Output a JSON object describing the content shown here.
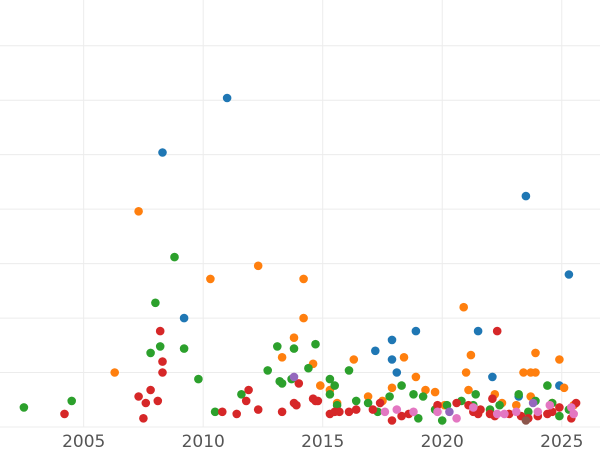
{
  "chart_data": {
    "type": "scatter",
    "title": "",
    "xlabel": "",
    "ylabel": "",
    "xlim": [
      2001.5,
      2026.6
    ],
    "ylim": [
      0,
      9.8
    ],
    "grid": true,
    "x_ticks": [
      2005,
      2010,
      2015,
      2020,
      2025
    ],
    "x_tick_labels": [
      "2005",
      "2010",
      "2015",
      "2020",
      "2025"
    ],
    "y_gridlines": [
      0,
      1.25,
      2.5,
      3.75,
      5.0,
      6.25,
      7.5,
      8.75
    ],
    "series": [
      {
        "color": "#1f77b4",
        "points": [
          [
            2008.3,
            6.3
          ],
          [
            2011.0,
            7.55
          ],
          [
            2009.2,
            2.5
          ],
          [
            2017.9,
            2.0
          ],
          [
            2018.9,
            2.2
          ],
          [
            2017.2,
            1.75
          ],
          [
            2017.9,
            1.55
          ],
          [
            2018.1,
            1.25
          ],
          [
            2021.5,
            2.2
          ],
          [
            2022.1,
            1.15
          ],
          [
            2023.5,
            5.3
          ],
          [
            2025.3,
            3.5
          ],
          [
            2024.9,
            0.95
          ],
          [
            2023.2,
            0.7
          ]
        ]
      },
      {
        "color": "#ff7f0e",
        "points": [
          [
            2007.3,
            4.95
          ],
          [
            2006.3,
            1.25
          ],
          [
            2010.3,
            3.4
          ],
          [
            2012.3,
            3.7
          ],
          [
            2014.2,
            3.4
          ],
          [
            2014.2,
            2.5
          ],
          [
            2013.8,
            2.05
          ],
          [
            2013.3,
            1.6
          ],
          [
            2014.6,
            1.45
          ],
          [
            2014.9,
            0.95
          ],
          [
            2015.3,
            0.85
          ],
          [
            2016.3,
            1.55
          ],
          [
            2016.9,
            0.7
          ],
          [
            2017.9,
            0.9
          ],
          [
            2018.4,
            1.6
          ],
          [
            2018.9,
            1.15
          ],
          [
            2019.3,
            0.85
          ],
          [
            2020.1,
            0.5
          ],
          [
            2020.9,
            2.75
          ],
          [
            2021.2,
            1.65
          ],
          [
            2021.0,
            1.25
          ],
          [
            2021.1,
            0.85
          ],
          [
            2022.2,
            0.75
          ],
          [
            2022.5,
            0.55
          ],
          [
            2023.4,
            1.25
          ],
          [
            2023.7,
            1.25
          ],
          [
            2023.9,
            1.25
          ],
          [
            2023.9,
            1.7
          ],
          [
            2023.7,
            0.7
          ],
          [
            2024.9,
            1.55
          ],
          [
            2025.1,
            0.9
          ],
          [
            2025.5,
            0.5
          ],
          [
            2015.6,
            0.55
          ],
          [
            2017.5,
            0.6
          ],
          [
            2019.7,
            0.8
          ],
          [
            2023.1,
            0.5
          ],
          [
            2024.6,
            0.55
          ]
        ]
      },
      {
        "color": "#2ca02c",
        "points": [
          [
            2002.5,
            0.45
          ],
          [
            2004.5,
            0.6
          ],
          [
            2007.8,
            1.7
          ],
          [
            2008.0,
            2.85
          ],
          [
            2008.2,
            1.85
          ],
          [
            2008.8,
            3.9
          ],
          [
            2009.2,
            1.8
          ],
          [
            2009.8,
            1.1
          ],
          [
            2010.5,
            0.35
          ],
          [
            2011.6,
            0.75
          ],
          [
            2012.7,
            1.3
          ],
          [
            2013.1,
            1.85
          ],
          [
            2013.3,
            1.0
          ],
          [
            2013.2,
            1.05
          ],
          [
            2013.7,
            1.1
          ],
          [
            2013.8,
            1.8
          ],
          [
            2014.4,
            1.35
          ],
          [
            2014.7,
            1.9
          ],
          [
            2015.3,
            1.1
          ],
          [
            2015.5,
            0.95
          ],
          [
            2015.3,
            0.75
          ],
          [
            2015.6,
            0.5
          ],
          [
            2016.1,
            1.3
          ],
          [
            2016.4,
            0.6
          ],
          [
            2016.9,
            0.55
          ],
          [
            2017.3,
            0.35
          ],
          [
            2017.8,
            0.7
          ],
          [
            2018.3,
            0.95
          ],
          [
            2018.8,
            0.75
          ],
          [
            2019.2,
            0.7
          ],
          [
            2019.7,
            0.4
          ],
          [
            2019.0,
            0.2
          ],
          [
            2020.0,
            0.15
          ],
          [
            2020.2,
            0.5
          ],
          [
            2021.3,
            0.5
          ],
          [
            2021.4,
            0.75
          ],
          [
            2022.0,
            0.4
          ],
          [
            2022.4,
            0.5
          ],
          [
            2023.2,
            0.75
          ],
          [
            2023.6,
            0.35
          ],
          [
            2024.4,
            0.95
          ],
          [
            2024.6,
            0.55
          ],
          [
            2024.9,
            0.25
          ],
          [
            2025.3,
            0.4
          ],
          [
            2020.8,
            0.6
          ],
          [
            2023.9,
            0.6
          ]
        ]
      },
      {
        "color": "#d62728",
        "points": [
          [
            2004.2,
            0.3
          ],
          [
            2007.3,
            0.7
          ],
          [
            2007.5,
            0.2
          ],
          [
            2007.6,
            0.55
          ],
          [
            2007.8,
            0.85
          ],
          [
            2008.1,
            0.6
          ],
          [
            2008.2,
            2.2
          ],
          [
            2008.3,
            1.5
          ],
          [
            2008.3,
            1.25
          ],
          [
            2010.8,
            0.35
          ],
          [
            2011.4,
            0.3
          ],
          [
            2011.8,
            0.6
          ],
          [
            2011.9,
            0.85
          ],
          [
            2012.3,
            0.4
          ],
          [
            2013.3,
            0.35
          ],
          [
            2013.8,
            0.55
          ],
          [
            2013.9,
            0.5
          ],
          [
            2014.0,
            1.0
          ],
          [
            2014.6,
            0.65
          ],
          [
            2014.8,
            0.6
          ],
          [
            2015.3,
            0.3
          ],
          [
            2015.5,
            0.35
          ],
          [
            2015.7,
            0.35
          ],
          [
            2016.1,
            0.35
          ],
          [
            2016.4,
            0.4
          ],
          [
            2017.1,
            0.4
          ],
          [
            2017.4,
            0.55
          ],
          [
            2017.9,
            0.15
          ],
          [
            2018.3,
            0.25
          ],
          [
            2018.6,
            0.3
          ],
          [
            2019.8,
            0.5
          ],
          [
            2020.6,
            0.55
          ],
          [
            2021.1,
            0.5
          ],
          [
            2021.3,
            0.35
          ],
          [
            2021.5,
            0.3
          ],
          [
            2021.6,
            0.4
          ],
          [
            2022.0,
            0.3
          ],
          [
            2022.2,
            0.25
          ],
          [
            2022.1,
            0.65
          ],
          [
            2022.3,
            2.2
          ],
          [
            2022.8,
            0.3
          ],
          [
            2023.3,
            0.25
          ],
          [
            2023.6,
            0.2
          ],
          [
            2024.0,
            0.25
          ],
          [
            2024.4,
            0.3
          ],
          [
            2024.6,
            0.35
          ],
          [
            2024.9,
            0.45
          ],
          [
            2025.4,
            0.2
          ],
          [
            2025.6,
            0.55
          ],
          [
            2014.7,
            0.6
          ]
        ]
      },
      {
        "color": "#9467bd",
        "points": [
          [
            2013.8,
            1.15
          ],
          [
            2020.3,
            0.35
          ],
          [
            2023.8,
            0.55
          ]
        ]
      },
      {
        "color": "#8c564b",
        "points": [
          [
            2023.5,
            0.15
          ]
        ]
      },
      {
        "color": "#e377c2",
        "points": [
          [
            2017.6,
            0.35
          ],
          [
            2018.1,
            0.4
          ],
          [
            2018.8,
            0.35
          ],
          [
            2019.8,
            0.35
          ],
          [
            2020.6,
            0.2
          ],
          [
            2021.3,
            0.45
          ],
          [
            2022.3,
            0.3
          ],
          [
            2022.6,
            0.3
          ],
          [
            2023.1,
            0.35
          ],
          [
            2024.0,
            0.35
          ],
          [
            2024.5,
            0.5
          ],
          [
            2025.4,
            0.45
          ],
          [
            2025.5,
            0.3
          ]
        ]
      }
    ]
  }
}
